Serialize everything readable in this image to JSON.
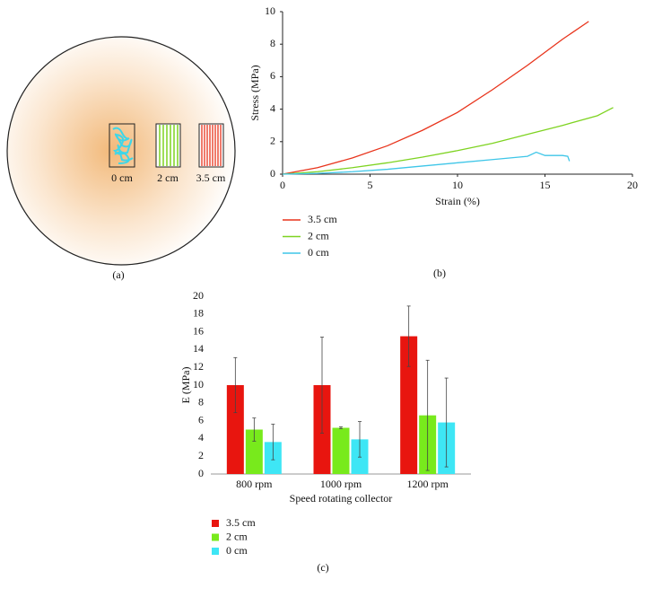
{
  "diagram": {
    "labels": [
      "0 cm",
      "2 cm",
      "3.5 cm"
    ],
    "caption": "(a)"
  },
  "chart_data": [
    {
      "type": "line",
      "caption": "(b)",
      "xlabel": "Strain (%)",
      "ylabel": "Stress (MPa)",
      "xlim": [
        0,
        20
      ],
      "xticks": [
        0,
        5,
        10,
        15,
        20
      ],
      "ylim": [
        0,
        10
      ],
      "yticks": [
        0,
        2,
        4,
        6,
        8,
        10
      ],
      "grid": false,
      "series": [
        {
          "name": "3.5 cm",
          "color": "#e8341c",
          "x": [
            0,
            2,
            4,
            6,
            8,
            10,
            12,
            14,
            16,
            17.5
          ],
          "values": [
            0,
            0.4,
            1.0,
            1.75,
            2.7,
            3.8,
            5.2,
            6.7,
            8.3,
            9.4
          ]
        },
        {
          "name": "2 cm",
          "color": "#7ed321",
          "x": [
            0,
            2,
            4,
            6,
            8,
            10,
            12,
            14,
            16,
            18,
            18.9
          ],
          "values": [
            0,
            0.15,
            0.4,
            0.7,
            1.05,
            1.45,
            1.9,
            2.45,
            3.0,
            3.6,
            4.1
          ]
        },
        {
          "name": "0 cm",
          "color": "#3ec6e8",
          "x": [
            0,
            2,
            4,
            6,
            8,
            10,
            12,
            14,
            14.5,
            15,
            16,
            16.3,
            16.4
          ],
          "values": [
            0,
            0.05,
            0.15,
            0.3,
            0.5,
            0.7,
            0.9,
            1.1,
            1.35,
            1.15,
            1.15,
            1.1,
            0.8
          ]
        }
      ]
    },
    {
      "type": "bar",
      "caption": "(c)",
      "xlabel": "Speed rotating collector",
      "ylabel": "E (MPa)",
      "categories": [
        "800 rpm",
        "1000 rpm",
        "1200 rpm"
      ],
      "ylim": [
        0,
        20
      ],
      "yticks": [
        0,
        2,
        4,
        6,
        8,
        10,
        12,
        14,
        16,
        18,
        20
      ],
      "grid": false,
      "series": [
        {
          "name": "3.5 cm",
          "color": "#e8150f",
          "values": [
            10,
            10,
            15.5
          ],
          "errors": [
            3.1,
            5.4,
            3.4
          ]
        },
        {
          "name": "2 cm",
          "color": "#78ea1c",
          "values": [
            5,
            5.2,
            6.6
          ],
          "errors": [
            1.3,
            0.1,
            6.2
          ]
        },
        {
          "name": "0 cm",
          "color": "#3ee6f5",
          "values": [
            3.6,
            3.9,
            5.8
          ],
          "errors": [
            2,
            2,
            5
          ]
        }
      ]
    }
  ]
}
